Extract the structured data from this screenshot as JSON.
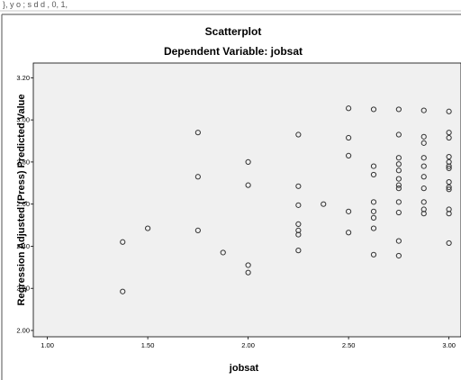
{
  "top_strip_text": "}, y o ; s d d , 0, 1,",
  "chart_data": {
    "type": "scatter",
    "title": "Scatterplot",
    "subtitle": "Dependent Variable: jobsat",
    "xlabel": "jobsat",
    "ylabel": "Regression Adjusted (Press) Predicted Value",
    "xlim": [
      0.93,
      3.06
    ],
    "ylim": [
      1.97,
      3.27
    ],
    "x_ticks": [
      "1.00",
      "1.50",
      "2.00",
      "2.50",
      "3.00"
    ],
    "y_ticks": [
      "2.00",
      "2.20",
      "2.40",
      "2.60",
      "2.80",
      "3.00",
      "3.20"
    ],
    "grid": false,
    "points": [
      [
        1.375,
        2.42
      ],
      [
        1.375,
        2.185
      ],
      [
        1.5,
        2.485
      ],
      [
        1.75,
        2.94
      ],
      [
        1.75,
        2.73
      ],
      [
        1.75,
        2.475
      ],
      [
        1.875,
        2.37
      ],
      [
        2.0,
        2.8
      ],
      [
        2.0,
        2.69
      ],
      [
        2.0,
        2.31
      ],
      [
        2.0,
        2.275
      ],
      [
        2.25,
        2.93
      ],
      [
        2.25,
        2.685
      ],
      [
        2.25,
        2.595
      ],
      [
        2.25,
        2.505
      ],
      [
        2.25,
        2.475
      ],
      [
        2.25,
        2.455
      ],
      [
        2.25,
        2.38
      ],
      [
        2.375,
        2.6
      ],
      [
        2.5,
        3.055
      ],
      [
        2.5,
        2.915
      ],
      [
        2.5,
        2.83
      ],
      [
        2.5,
        2.565
      ],
      [
        2.5,
        2.465
      ],
      [
        2.625,
        3.05
      ],
      [
        2.625,
        2.78
      ],
      [
        2.625,
        2.74
      ],
      [
        2.625,
        2.61
      ],
      [
        2.625,
        2.565
      ],
      [
        2.625,
        2.535
      ],
      [
        2.625,
        2.485
      ],
      [
        2.625,
        2.36
      ],
      [
        2.75,
        3.05
      ],
      [
        2.75,
        2.93
      ],
      [
        2.75,
        2.82
      ],
      [
        2.75,
        2.79
      ],
      [
        2.75,
        2.76
      ],
      [
        2.75,
        2.72
      ],
      [
        2.75,
        2.69
      ],
      [
        2.75,
        2.675
      ],
      [
        2.75,
        2.61
      ],
      [
        2.75,
        2.56
      ],
      [
        2.75,
        2.425
      ],
      [
        2.75,
        2.355
      ],
      [
        2.875,
        3.045
      ],
      [
        2.875,
        2.92
      ],
      [
        2.875,
        2.89
      ],
      [
        2.875,
        2.82
      ],
      [
        2.875,
        2.78
      ],
      [
        2.875,
        2.73
      ],
      [
        2.875,
        2.675
      ],
      [
        2.875,
        2.61
      ],
      [
        2.875,
        2.575
      ],
      [
        2.875,
        2.555
      ],
      [
        3.0,
        3.04
      ],
      [
        3.0,
        2.94
      ],
      [
        3.0,
        2.915
      ],
      [
        3.0,
        2.825
      ],
      [
        3.0,
        2.8
      ],
      [
        3.0,
        2.78
      ],
      [
        3.0,
        2.77
      ],
      [
        3.0,
        2.705
      ],
      [
        3.0,
        2.68
      ],
      [
        3.0,
        2.67
      ],
      [
        3.0,
        2.575
      ],
      [
        3.0,
        2.555
      ],
      [
        3.0,
        2.415
      ]
    ]
  }
}
